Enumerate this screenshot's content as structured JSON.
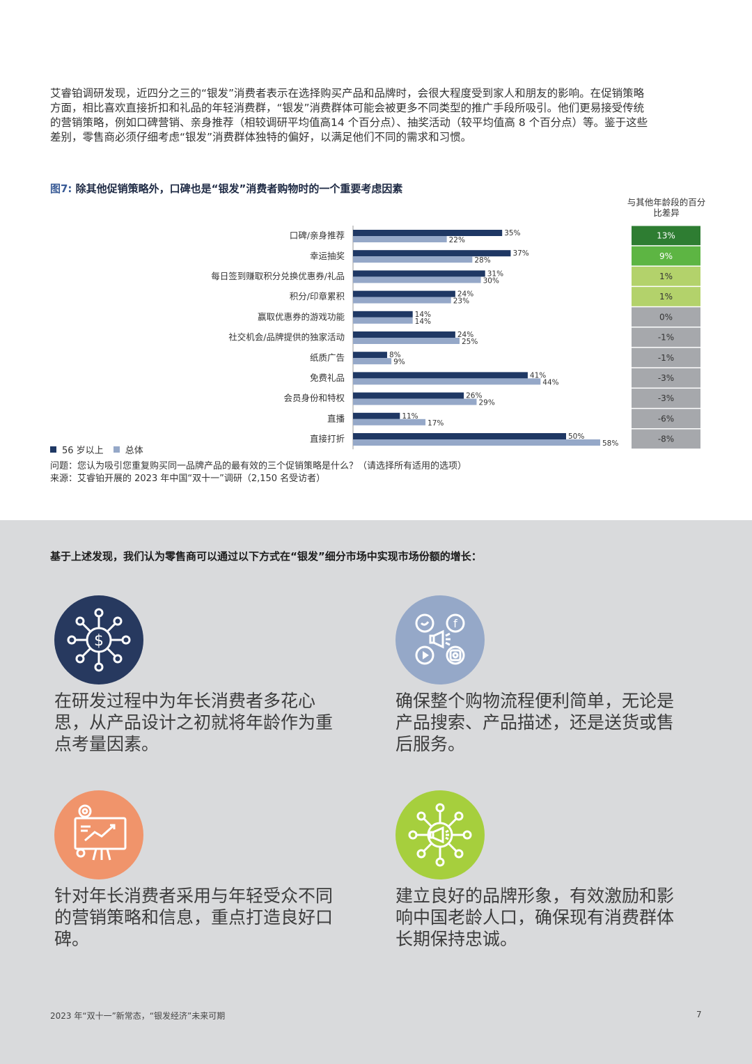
{
  "intro_paragraph": "艾睿铂调研发现，近四分之三的“银发”消费者表示在选择购买产品和品牌时，会很大程度受到家人和朋友的影响。在促销策略方面，相比喜欢直接折扣和礼品的年轻消费群，“银发”消费群体可能会被更多不同类型的推广手段所吸引。他们更易接受传统的营销策略，例如口碑营销、亲身推荐（相较调研平均值高14 个百分点）、抽奖活动（较平均值高 8 个百分点）等。鉴于这些差别，零售商必须仔细考虑“银发”消费群体独特的偏好，以满足他们不同的需求和习惯。",
  "figure": {
    "number": "图7:",
    "title": "除其他促销策略外，口碑也是“银发”消费者购物时的一个重要考虑因素",
    "diff_header": "与其他年龄段的百分比差异",
    "question": "问题：您认为吸引您重复购买同一品牌产品的最有效的三个促销策略是什么？（请选择所有适用的选项）",
    "source": "来源：艾睿铂开展的 2023 年中国“双十一”调研（2,150 名受访者）",
    "legend": {
      "senior": "56 岁以上",
      "overall": "总体"
    }
  },
  "chart_data": {
    "type": "bar",
    "orientation": "horizontal",
    "categories": [
      "口碑/亲身推荐",
      "幸运抽奖",
      "每日签到赚取积分兑换优惠券/礼品",
      "积分/印章累积",
      "赢取优惠券的游戏功能",
      "社交机会/品牌提供的独家活动",
      "纸质广告",
      "免费礼品",
      "会员身份和特权",
      "直播",
      "直接打折"
    ],
    "series": [
      {
        "name": "56 岁以上",
        "color": "#1f3864",
        "values": [
          35,
          37,
          31,
          24,
          14,
          24,
          8,
          41,
          26,
          11,
          50
        ],
        "labels": [
          "35%",
          "37%",
          "31%",
          "24%",
          "14%",
          "24%",
          "8%",
          "41%",
          "26%",
          "11%",
          "50%"
        ]
      },
      {
        "name": "总体",
        "color": "#95a8c8",
        "values": [
          22,
          28,
          30,
          23,
          14,
          25,
          9,
          44,
          29,
          17,
          58
        ],
        "labels": [
          "22%",
          "28%",
          "30%",
          "23%",
          "14%",
          "25%",
          "9%",
          "44%",
          "29%",
          "17%",
          "58%"
        ]
      }
    ],
    "difference": {
      "values": [
        13,
        9,
        1,
        1,
        0,
        -1,
        -1,
        -3,
        -3,
        -6,
        -8
      ],
      "labels": [
        "13%",
        "9%",
        "1%",
        "1%",
        "0%",
        "-1%",
        "-1%",
        "-3%",
        "-3%",
        "-6%",
        "-8%"
      ],
      "colors": [
        "#2e7d32",
        "#5db543",
        "#b3d26b",
        "#b3d26b",
        "#a6a8ac",
        "#a6a8ac",
        "#a6a8ac",
        "#a6a8ac",
        "#a6a8ac",
        "#a6a8ac",
        "#a6a8ac"
      ]
    },
    "xlim": [
      0,
      60
    ]
  },
  "panel": {
    "heading": "基于上述发现，我们认为零售商可以通过以下方式在“银发”细分市场中实现市场份额的增长：",
    "items": [
      {
        "icon": "network-dollar-icon",
        "color": "#27395f",
        "text": "在研发过程中为年长消费者多花心思，从产品设计之初就将年龄作为重点考量因素。"
      },
      {
        "icon": "social-media-icon",
        "color": "#95a8c8",
        "text": "确保整个购物流程便利简单，无论是产品搜索、产品描述，还是送货或售后服务。"
      },
      {
        "icon": "presentation-chart-icon",
        "color": "#f0946b",
        "text": "针对年长消费者采用与年轻受众不同的营销策略和信息，重点打造良好口碑。"
      },
      {
        "icon": "megaphone-network-icon",
        "color": "#a6cf3d",
        "text": "建立良好的品牌形象，有效激励和影响中国老龄人口，确保现有消费群体长期保持忠诚。"
      }
    ]
  },
  "footer": {
    "title": "2023 年“双十一”新常态，“银发经济”未来可期",
    "page_number": "7"
  }
}
